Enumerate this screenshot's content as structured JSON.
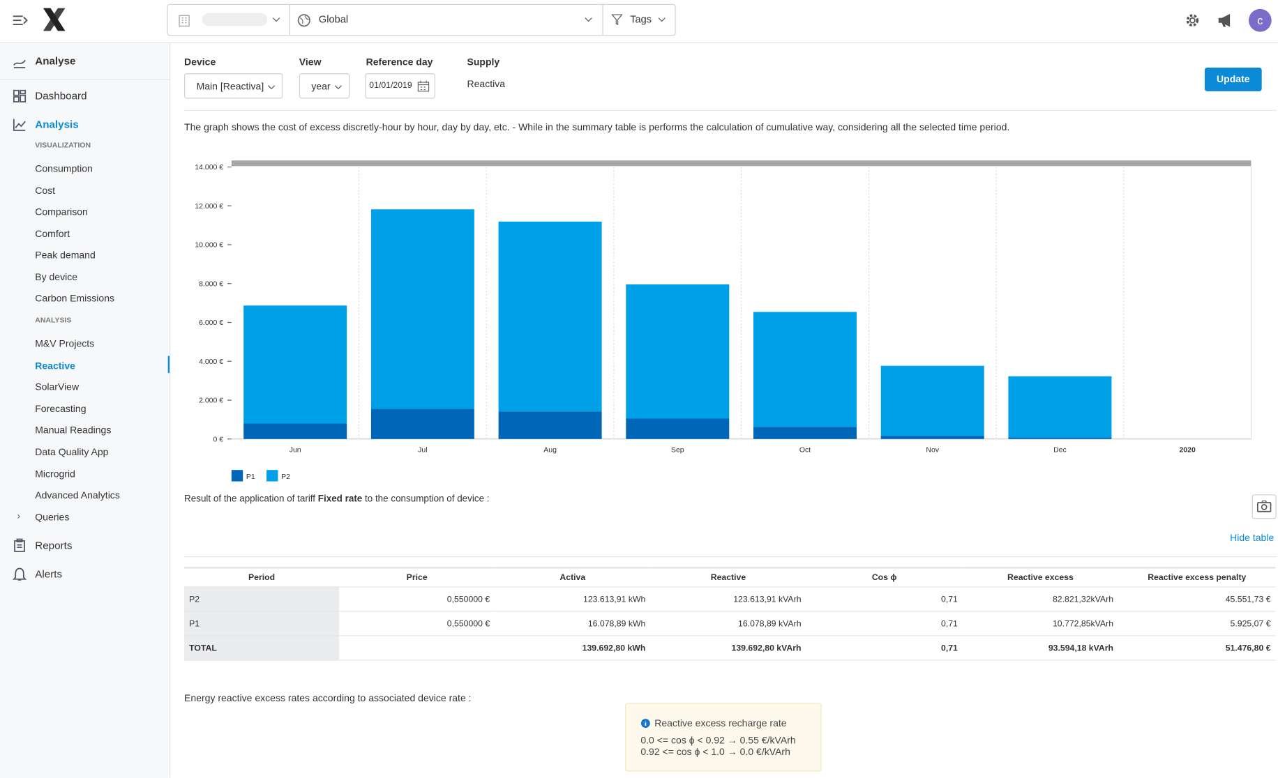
{
  "topbar": {
    "scope": "Global",
    "tags": "Tags",
    "avatar": "c"
  },
  "sidebar": {
    "header": "Analyse",
    "dashboard": "Dashboard",
    "analysis": "Analysis",
    "visualization_heading": "VISUALIZATION",
    "visualization": [
      "Consumption",
      "Cost",
      "Comparison",
      "Comfort",
      "Peak demand",
      "By device",
      "Carbon Emissions"
    ],
    "analysis_heading": "ANALYSIS",
    "analysis_items": [
      "M&V Projects",
      "Reactive",
      "SolarView",
      "Forecasting",
      "Manual Readings",
      "Data Quality App",
      "Microgrid",
      "Advanced Analytics"
    ],
    "queries": "Queries",
    "reports": "Reports",
    "alerts": "Alerts"
  },
  "filters": {
    "device_label": "Device",
    "device": "Main [Reactiva]",
    "view_label": "View",
    "view": "year",
    "reference_label": "Reference day",
    "reference": "01/01/2019",
    "supply_label": "Supply",
    "supply": "Reactiva",
    "update": "Update"
  },
  "description": "The graph shows the cost of excess discretly-hour by hour, day by day, etc. - While in the summary table is performs the calculation of cumulative way, considering all the selected time period.",
  "chart_data": {
    "type": "bar",
    "stacked": true,
    "categories": [
      "Jun",
      "Jul",
      "Aug",
      "Sep",
      "Oct",
      "Nov",
      "Dec",
      "2020"
    ],
    "series": [
      {
        "name": "P1",
        "color": "#0066b8",
        "values": [
          800,
          1550,
          1420,
          1050,
          630,
          170,
          80,
          null
        ]
      },
      {
        "name": "P2",
        "color": "#00a0e9",
        "values": [
          6070,
          10270,
          9770,
          6910,
          5910,
          3600,
          3150,
          null
        ]
      }
    ],
    "ylim": [
      0,
      14000
    ],
    "yticks": [
      {
        "value": 0,
        "label": "0 €"
      },
      {
        "value": 2000,
        "label": "2.000 €"
      },
      {
        "value": 4000,
        "label": "4.000 €"
      },
      {
        "value": 6000,
        "label": "6.000 €"
      },
      {
        "value": 8000,
        "label": "8.000 €"
      },
      {
        "value": 10000,
        "label": "10.000 €"
      },
      {
        "value": 12000,
        "label": "12.000 €"
      },
      {
        "value": 14000,
        "label": "14.000 €"
      }
    ],
    "grid": true,
    "legend": "bottom-left"
  },
  "result": {
    "before": "Result of the application of tariff",
    "tariff": "Fixed rate",
    "after": "to the consumption of device :",
    "hide": "Hide table"
  },
  "table": {
    "headers": [
      "Period",
      "Price",
      "Activa",
      "Reactive",
      "Cos ϕ",
      "Reactive excess",
      "Reactive excess penalty"
    ],
    "rows": [
      [
        "P2",
        "0,550000 €",
        "123.613,91 kWh",
        "123.613,91 kVArh",
        "0,71",
        "82.821,32kVArh",
        "45.551,73 €"
      ],
      [
        "P1",
        "0,550000 €",
        "16.078,89 kWh",
        "16.078,89 kVArh",
        "0,71",
        "10.772,85kVArh",
        "5.925,07 €"
      ]
    ],
    "total": [
      "TOTAL",
      null,
      "139.692,80 kWh",
      "139.692,80 kVArh",
      "0,71",
      "93.594,18 kVArh",
      "51.476,80 €"
    ]
  },
  "rates": {
    "intro": "Energy reactive excess rates according to associated device rate :",
    "title": "Reactive excess recharge rate",
    "lines": [
      "0.0 <= cos ϕ < 0.92 → 0.55 €/kVArh",
      "0.92 <= cos ϕ < 1.0 → 0.0 €/kVArh"
    ]
  }
}
